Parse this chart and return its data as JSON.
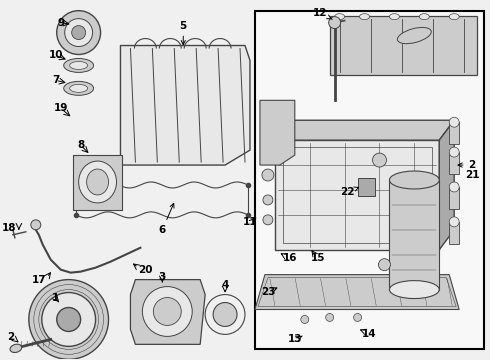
{
  "bg_color": "#f0f0f0",
  "line_color": "#444444",
  "fill_light": "#e8e8e8",
  "fill_mid": "#cccccc",
  "fill_dark": "#aaaaaa",
  "text_color": "#000000",
  "box_border": "#000000",
  "inset_bg": "#f8f8f8",
  "figsize": [
    4.9,
    3.6
  ],
  "dpi": 100
}
